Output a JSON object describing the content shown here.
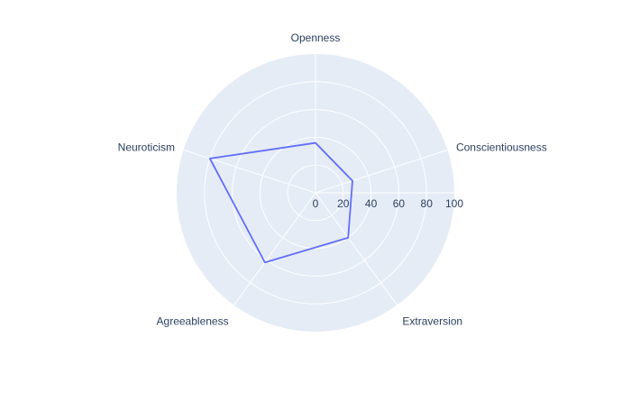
{
  "chart_data": {
    "type": "radar",
    "title": "",
    "categories": [
      "Openness",
      "Conscientiousness",
      "Extraversion",
      "Agreeableness",
      "Neuroticism"
    ],
    "series": [
      {
        "values": [
          36,
          28,
          40,
          62,
          80
        ]
      }
    ],
    "radial_range": [
      0,
      100
    ],
    "radial_ticks": [
      0,
      20,
      40,
      60,
      80,
      100
    ],
    "grid": true,
    "colors": {
      "polar_background": "#e5ecf6",
      "grid": "#ffffff",
      "series_line": "#636efa",
      "text": "#2a3f5f"
    }
  }
}
